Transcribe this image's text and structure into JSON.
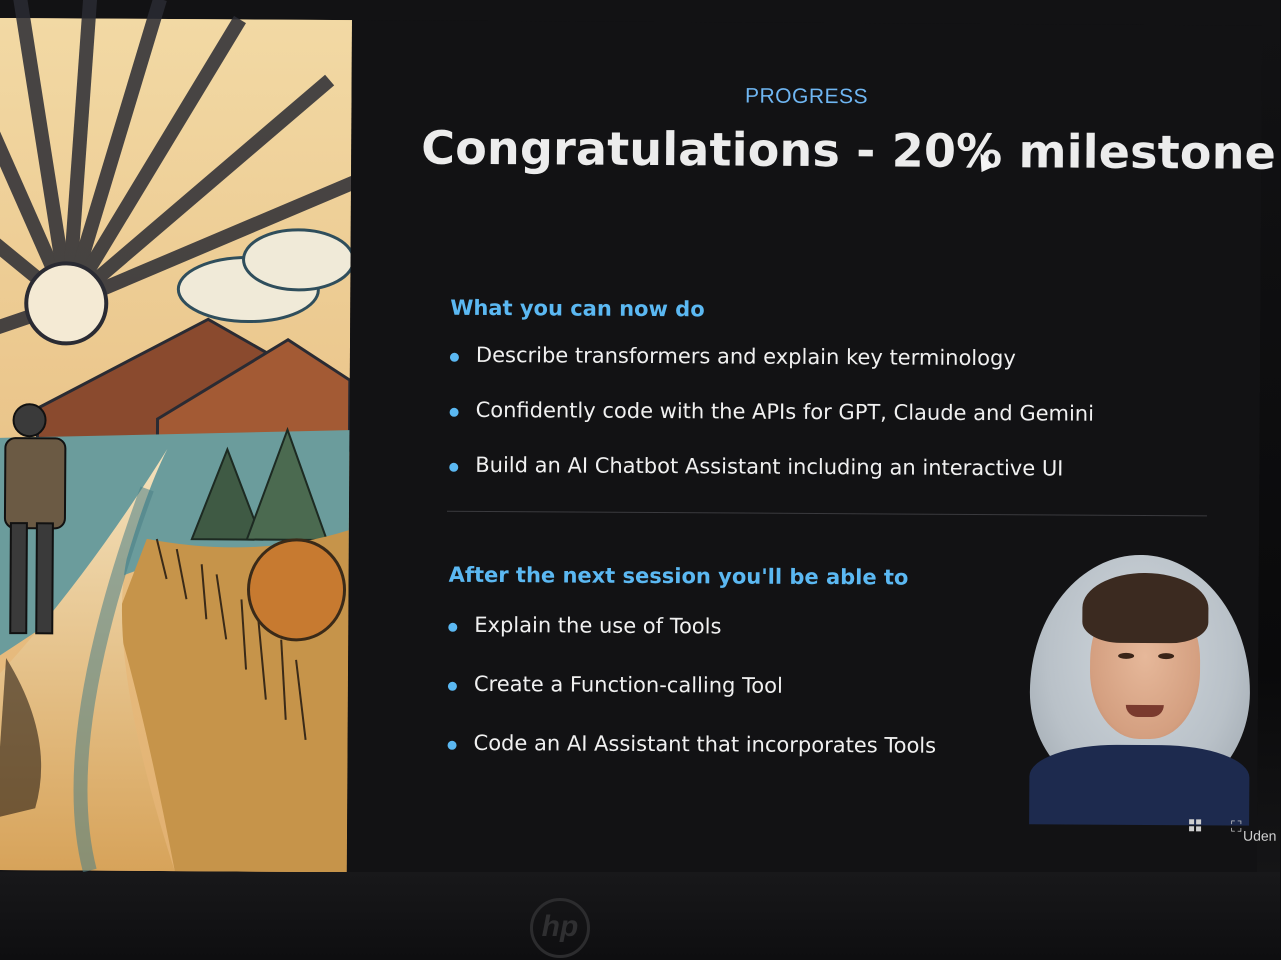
{
  "slide": {
    "eyebrow": "PROGRESS",
    "title": "Congratulations - 20% milestone",
    "section1": {
      "heading": "What you can now do",
      "items": [
        "Describe transformers and explain key terminology",
        "Confidently code with the APIs for GPT, Claude and Gemini",
        "Build an AI Chatbot Assistant including an interactive UI"
      ]
    },
    "section2": {
      "heading": "After the next session you'll be able to",
      "items": [
        "Explain the use of Tools",
        "Create a Function-calling Tool",
        "Code an AI Assistant that incorporates Tools"
      ]
    }
  },
  "overlay": {
    "brand_text": "Uden",
    "grid_icon": "grid-icon",
    "expand_icon": "expand-icon"
  },
  "device": {
    "logo_text": "hp"
  },
  "colors": {
    "accent": "#5bb8f2",
    "eyebrow": "#6fb6f2",
    "background": "#121214",
    "text": "#f0f0f0"
  }
}
